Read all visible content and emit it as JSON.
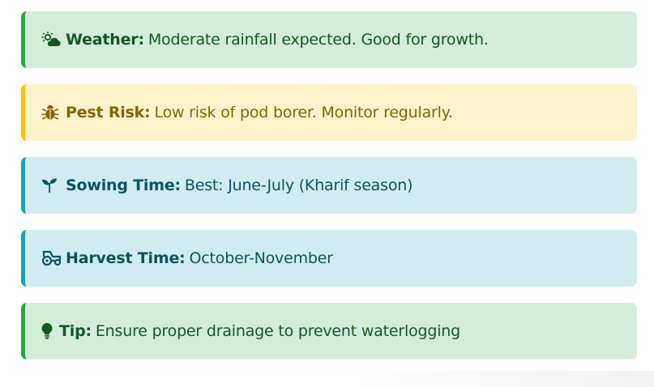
{
  "alerts": [
    {
      "icon": "cloud-sun-icon",
      "label": "Weather:",
      "text": "Moderate rainfall expected. Good for growth.",
      "color": "#28a745"
    },
    {
      "icon": "bug-icon",
      "label": "Pest Risk:",
      "text": "Low risk of pod borer. Monitor regularly.",
      "color": "#ffc107"
    },
    {
      "icon": "seedling-icon",
      "label": "Sowing Time:",
      "text": "Best: June-July (Kharif season)",
      "color": "#17a2b8"
    },
    {
      "icon": "tractor-icon",
      "label": "Harvest Time:",
      "text": "October-November",
      "color": "#17a2b8"
    },
    {
      "icon": "lightbulb-icon",
      "label": "Tip:",
      "text": "Ensure proper drainage to prevent waterlogging",
      "color": "#28a745"
    }
  ]
}
